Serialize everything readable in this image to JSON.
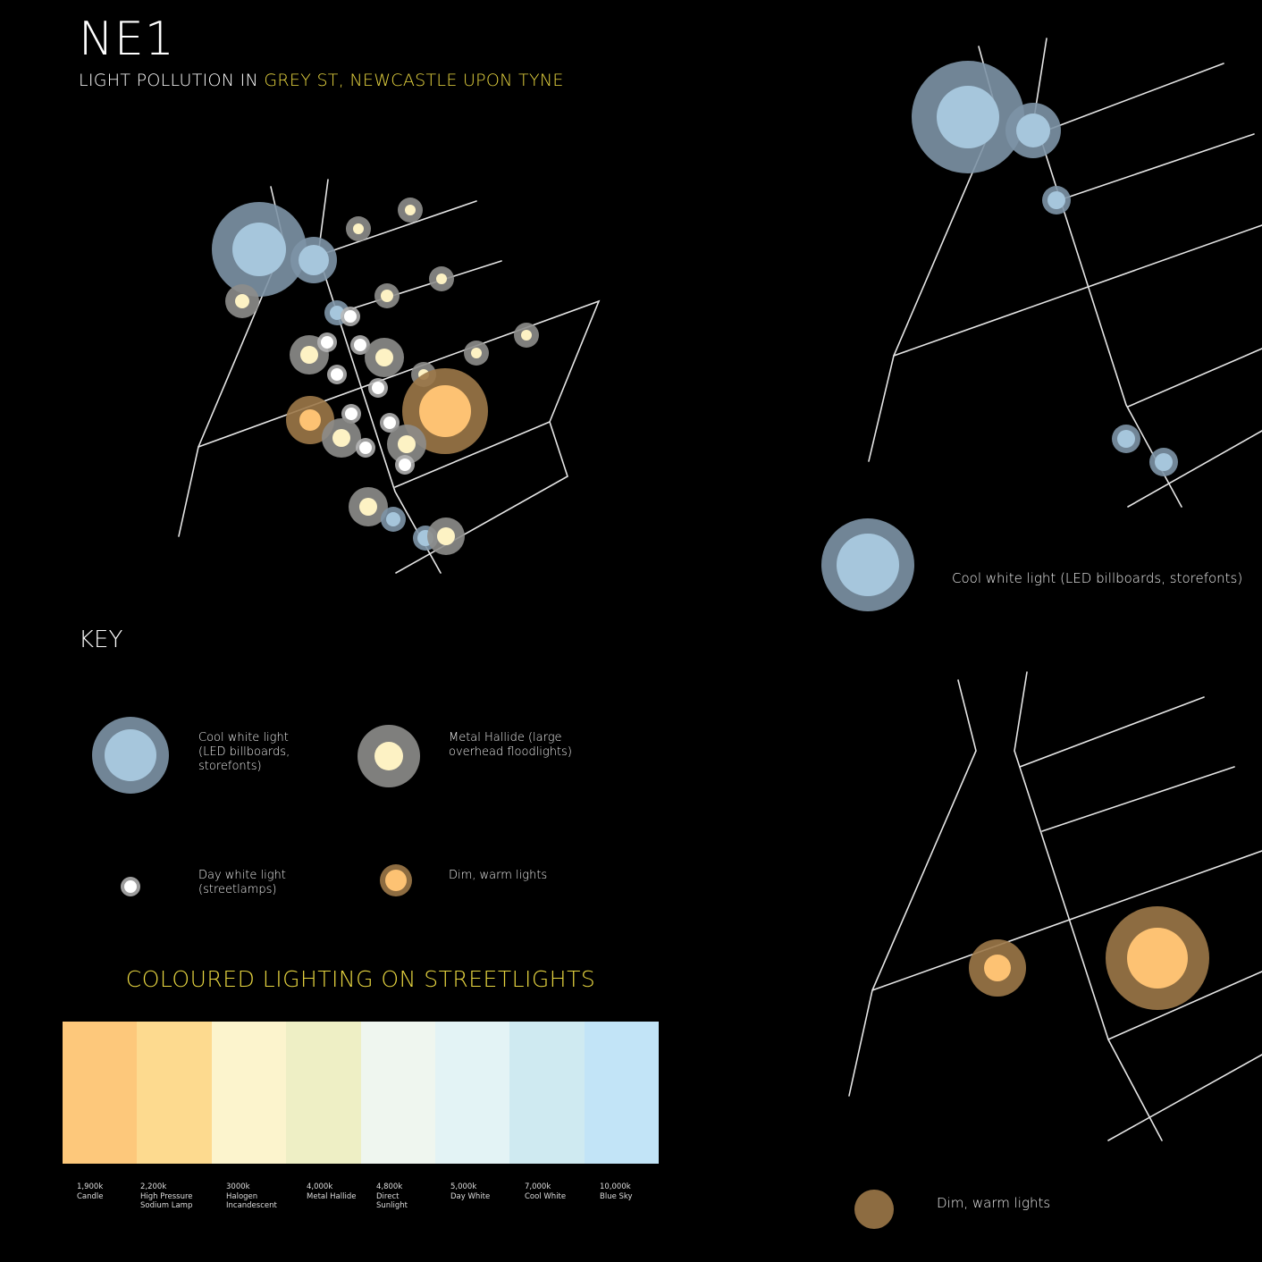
{
  "header": {
    "title": "NE1",
    "subtitle_prefix": "LIGHT POLLUTION IN ",
    "subtitle_highlight": "GREY ST, NEWCASTLE UPON TYNE"
  },
  "colors": {
    "cool_outer": "#7d93a6",
    "cool_inner": "#a6c6dc",
    "metal_outer": "#8d8d8b",
    "metal_inner": "#fdf2c4",
    "day_outer": "#b9b9b9",
    "day_inner": "#ffffff",
    "warm_outer": "#9c7848",
    "warm_inner": "#fdc273",
    "highlight": "#e8d640"
  },
  "key": {
    "heading": "KEY",
    "items": [
      {
        "name": "cool",
        "label": "Cool white light\n(LED billboards,\nstorefonts)"
      },
      {
        "name": "metal",
        "label": "Metal Hallide (large\noverhead floodlights)"
      },
      {
        "name": "day",
        "label": "Day white light\n(streetlamps)"
      },
      {
        "name": "warm",
        "label": "Dim, warm lights"
      }
    ]
  },
  "inset_top": {
    "label": "Cool white light (LED billboards, storefonts)"
  },
  "inset_bottom": {
    "label": "Dim, warm lights"
  },
  "colour_temperature": {
    "heading": "COLOURED LIGHTING ON STREETLIGHTS",
    "swatches": [
      {
        "color": "#fdc87b",
        "label": "1,900k\nCandle"
      },
      {
        "color": "#fdda8f",
        "label": "2,200k\nHigh Pressure\nSodium Lamp"
      },
      {
        "color": "#fcf4cd",
        "label": "3000k\nHalogen\nIncandescent"
      },
      {
        "color": "#eeefc5",
        "label": "4,000k\nMetal Hallide"
      },
      {
        "color": "#eff6ef",
        "label": "4,800k\nDirect\nSunlight"
      },
      {
        "color": "#e3f3f5",
        "label": "5,000k\nDay White"
      },
      {
        "color": "#cfeaf1",
        "label": "7,000k\nCool White"
      },
      {
        "color": "#c2e4f7",
        "label": "10,000k\nBlue Sky"
      }
    ]
  }
}
